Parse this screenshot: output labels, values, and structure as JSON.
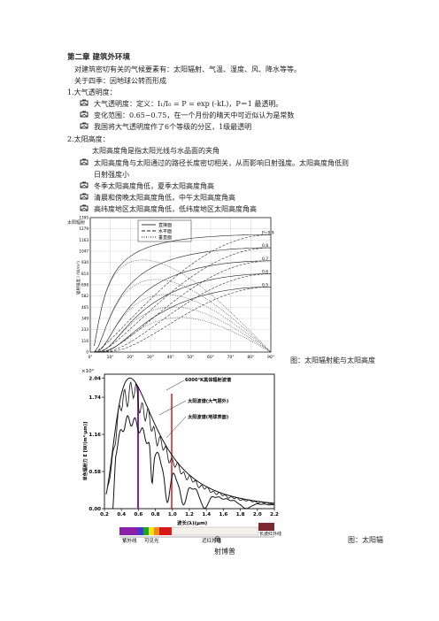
{
  "chapter_title": "第二章 建筑外环境",
  "intro_1": "对建筑密切有关的气候要素有：太阳辐射、气温、湿度、风、降水等等。",
  "intro_2": "关于四季：因地球公转而形成",
  "sec1": {
    "heading": "1.大气透明度：",
    "bullets": [
      "大气透明度：定义：I₁/I₀ = P = exp (-kL)，P＝1 最透明。",
      "变化范围：0.65~0.75，在一个月份的晴天中可近似认为是常数",
      "我国将大气透明度作了6个等级的分区，1级最透明"
    ]
  },
  "sec2": {
    "heading": "2.太阳高度：",
    "def": "太阳高度角是指太阳光线与水品面的夹角",
    "bullets": [
      "太阳高度角与太阳通过的路径长度密切相关，从而影响日射强度。太阳高度角低则",
      "冬季太阳高度角低，夏季太阳高度角高",
      "清晨和傍晚太阳高度角低，中午太阳高度角高",
      "高纬度地区太阳高度角低，低纬度地区太阳高度角高"
    ],
    "bullet1_cont": "日射强度小"
  },
  "fig1": {
    "caption": "图：太阳辐射能与太阳高度",
    "caption_cont": "角",
    "corner_label": "太阳辐射",
    "legend": [
      "直接面",
      "水平面",
      "垂直面"
    ],
    "y_ticks": [
      "1395",
      "1279",
      "1163",
      "1047",
      "930",
      "814",
      "698",
      "582",
      "465",
      "349",
      "233",
      "116",
      "0"
    ],
    "x_ticks": [
      "0°",
      "10°",
      "20°",
      "30°",
      "40°",
      "50°",
      "60°",
      "70°",
      "80°",
      "90°"
    ],
    "p_labels": [
      "P=0.9",
      "0.8",
      "0.7",
      "0.6",
      "0.5"
    ]
  },
  "fig2": {
    "caption": "图：太阳辐",
    "caption_cont": "射博普",
    "exp_label": "×10⁴",
    "y_ticks": [
      "2.04",
      "1.74",
      "1.16",
      "0.58",
      "0.00"
    ],
    "x_ticks": [
      "0.2",
      "0.4",
      "0.6",
      "0.8",
      "1.0",
      "1.2",
      "1.4",
      "1.6",
      "1.8",
      "2.0",
      "2.2"
    ],
    "x_label": "波长(λ)(μm)",
    "y_label": "单色辐射力 E [W/(m²·μm)]",
    "curve_labels": [
      "6000°K黑体辐射波谱",
      "太阳波谱(大气层外)",
      "太阳波谱(地球表面)"
    ],
    "bands": [
      "紫外线",
      "可见光",
      "近红外线",
      "长波红外线"
    ],
    "colors": {
      "violet": "#8b1fa8",
      "red": "#d81818",
      "infrared": "#7a2a30",
      "uv": "#9a2fb0"
    }
  }
}
